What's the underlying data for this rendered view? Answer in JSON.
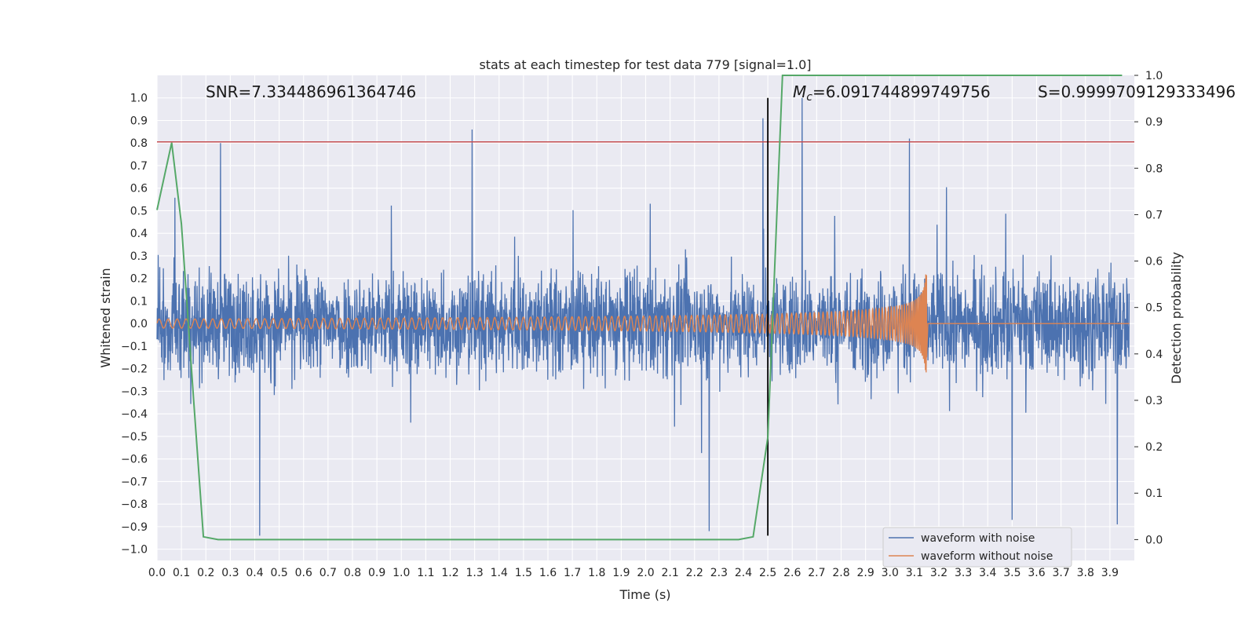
{
  "chart_data": {
    "type": "line",
    "title": "stats at each timestep for test data 779 [signal=1.0]",
    "xlabel": "Time (s)",
    "ylabel": "Whitened strain",
    "y2label": "Detection probability",
    "xlim": [
      0.0,
      4.0
    ],
    "ylim": [
      -1.05,
      1.1
    ],
    "y2lim": [
      -0.045,
      1.0
    ],
    "x_ticks": [
      "0.0",
      "0.1",
      "0.2",
      "0.3",
      "0.4",
      "0.5",
      "0.6",
      "0.7",
      "0.8",
      "0.9",
      "1.0",
      "1.1",
      "1.2",
      "1.3",
      "1.4",
      "1.5",
      "1.6",
      "1.7",
      "1.8",
      "1.9",
      "2.0",
      "2.1",
      "2.2",
      "2.3",
      "2.4",
      "2.5",
      "2.6",
      "2.7",
      "2.8",
      "2.9",
      "3.0",
      "3.1",
      "3.2",
      "3.3",
      "3.4",
      "3.5",
      "3.6",
      "3.7",
      "3.8",
      "3.9"
    ],
    "y_ticks": [
      "1.0",
      "0.9",
      "0.8",
      "0.7",
      "0.6",
      "0.5",
      "0.4",
      "0.3",
      "0.2",
      "0.1",
      "0.0",
      "−0.1",
      "−0.2",
      "−0.3",
      "−0.4",
      "−0.5",
      "−0.6",
      "−0.7",
      "−0.8",
      "−0.9",
      "−1.0"
    ],
    "y2_ticks": [
      "1.0",
      "0.9",
      "0.8",
      "0.7",
      "0.6",
      "0.5",
      "0.4",
      "0.3",
      "0.2",
      "0.1",
      "0.0"
    ],
    "grid": true,
    "legend": {
      "position": "lower-right",
      "entries": [
        "waveform with noise",
        "waveform without noise"
      ]
    },
    "annotations": {
      "snr": "SNR=7.334486961364746",
      "mc_symbol": "M",
      "mc_subscript": "c",
      "mc_value": "=6.091744899749756",
      "s": "S=0.9999709129333496"
    },
    "series": [
      {
        "name": "waveform with noise",
        "color": "#4c72b0",
        "axis": "left",
        "description": "noisy whitened strain, approx. +/-0.4 with peaks to 1.0 and -0.94",
        "peaks": [
          {
            "x": 0.26,
            "y": 0.8
          },
          {
            "x": 1.29,
            "y": 0.86
          },
          {
            "x": 2.48,
            "y": 0.91
          },
          {
            "x": 2.64,
            "y": 1.0
          },
          {
            "x": 3.08,
            "y": 0.82
          },
          {
            "x": 0.42,
            "y": -0.94
          },
          {
            "x": 2.26,
            "y": -0.92
          },
          {
            "x": 3.5,
            "y": -0.87
          },
          {
            "x": 3.93,
            "y": -0.89
          }
        ]
      },
      {
        "name": "waveform without noise",
        "color": "#dd8452",
        "axis": "left",
        "description": "chirp signal growing to about +/-0.22, ending at 3.15 s",
        "start": 0.0,
        "merger": 3.15,
        "amplitude_start": 0.02,
        "amplitude_end": 0.22
      },
      {
        "color": "#55a868",
        "axis": "right",
        "x": [
          0.0,
          0.06,
          0.1,
          0.15,
          0.19,
          0.25,
          2.38,
          2.44,
          2.5,
          2.56,
          2.65,
          3.95
        ],
        "y": [
          0.71,
          0.855,
          0.68,
          0.3,
          0.006,
          0.0,
          0.0,
          0.006,
          0.22,
          1.0,
          1.0,
          1.0
        ]
      }
    ],
    "reference_lines": [
      {
        "type": "horizontal",
        "axis": "left",
        "y": 0.805,
        "color": "#c44e52"
      },
      {
        "type": "vertical",
        "x": 2.5,
        "color": "#000000"
      }
    ]
  }
}
